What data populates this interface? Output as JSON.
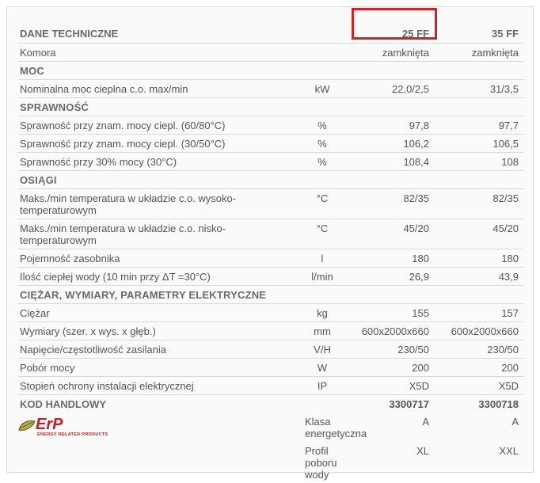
{
  "header": {
    "title": "DANE TECHNICZNE",
    "col1": "25 FF",
    "col2": "35 FF"
  },
  "colors": {
    "panel_bg": "#fafafa",
    "border": "#d9d9d9",
    "text": "#555555",
    "heading": "#6a6a6a",
    "highlight_border": "#d42020",
    "erp_red": "#c02121"
  },
  "sections": [
    {
      "heading": null,
      "rows": [
        {
          "label": "Komora",
          "unit": "",
          "v1": "zamknięta",
          "v2": "zamknięta"
        }
      ]
    },
    {
      "heading": "MOC",
      "rows": [
        {
          "label": "Nominalna moc cieplna c.o. max/min",
          "unit": "kW",
          "v1": "22,0/2,5",
          "v2": "31/3,5"
        }
      ]
    },
    {
      "heading": "SPRAWNOŚĆ",
      "rows": [
        {
          "label": "Sprawność przy znam. mocy ciepl. (60/80°C)",
          "unit": "%",
          "v1": "97,8",
          "v2": "97,7"
        },
        {
          "label": "Sprawność przy znam. mocy ciepl. (30/50°C)",
          "unit": "%",
          "v1": "106,2",
          "v2": "106,5"
        },
        {
          "label": "Sprawność przy 30% mocy (30°C)",
          "unit": "%",
          "v1": "108,4",
          "v2": "108"
        }
      ]
    },
    {
      "heading": "OSIĄGI",
      "rows": [
        {
          "label": "Maks./min temperatura w układzie c.o. wysoko-temperaturowym",
          "unit": "°C",
          "v1": "82/35",
          "v2": "82/35"
        },
        {
          "label": "Maks./min temperatura w układzie c.o. nisko-temperaturowym",
          "unit": "°C",
          "v1": "45/20",
          "v2": "45/20"
        },
        {
          "label": "Pojemność zasobnika",
          "unit": "l",
          "v1": "180",
          "v2": "180"
        },
        {
          "label": "Ilość ciepłej wody (10 min przy ΔT =30°C)",
          "unit": "l/min",
          "v1": "26,9",
          "v2": "43,9"
        }
      ]
    },
    {
      "heading": "CIĘŻAR, WYMIARY, PARAMETRY ELEKTRYCZNE",
      "rows": [
        {
          "label": "Ciężar",
          "unit": "kg",
          "v1": "155",
          "v2": "157"
        },
        {
          "label": "Wymiary (szer. x wys. x głęb.)",
          "unit": "mm",
          "v1": "600x2000x660",
          "v2": "600x2000x660"
        },
        {
          "label": "Napięcie/częstotliwość zasilania",
          "unit": "V/H",
          "v1": "230/50",
          "v2": "230/50"
        },
        {
          "label": "Pobór mocy",
          "unit": "W",
          "v1": "200",
          "v2": "200"
        },
        {
          "label": "Stopień ochrony instalacji elektrycznej",
          "unit": "IP",
          "v1": "X5D",
          "v2": "X5D"
        }
      ]
    }
  ],
  "kod": {
    "heading": "KOD HANDLOWY",
    "v1": "3300717",
    "v2": "3300718",
    "erp_label": "ErP",
    "erp_sub": "ENERGY RELATED PRODUCTS",
    "rows": [
      {
        "label": "Klasa energetyczna",
        "v1": "A",
        "v2": "A"
      },
      {
        "label": "Profil poboru wody",
        "v1": "XL",
        "v2": "XXL"
      }
    ]
  }
}
